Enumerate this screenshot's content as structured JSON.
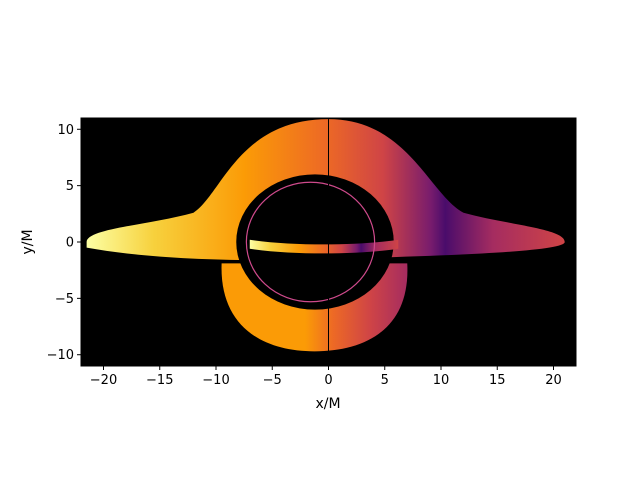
{
  "chart_data": {
    "type": "heatmap",
    "title": "",
    "xlabel": "x/M",
    "ylabel": "y/M",
    "xlim": [
      -22,
      22
    ],
    "ylim": [
      -11,
      11
    ],
    "xticks": [
      -20,
      -15,
      -10,
      -5,
      0,
      5,
      10,
      15,
      20
    ],
    "yticks": [
      -10,
      -5,
      0,
      5,
      10
    ],
    "xtick_labels": [
      "−20",
      "−15",
      "−10",
      "−5",
      "0",
      "5",
      "10",
      "15",
      "20"
    ],
    "ytick_labels": [
      "−10",
      "−5",
      "0",
      "5",
      "10"
    ],
    "grid": false,
    "legend": "none",
    "background": "#000000",
    "colormap": "inferno",
    "colormap_stops": [
      "#1b0c41",
      "#4a0c6b",
      "#781c6d",
      "#a52c60",
      "#cf4446",
      "#ed6925",
      "#fb9b06",
      "#f7d13d",
      "#fcffa4"
    ],
    "features": {
      "primary_disk_image": {
        "x_range": [
          -21.5,
          21
        ],
        "y_range": [
          -1.8,
          10.9
        ]
      },
      "secondary_disk_image": {
        "x_range": [
          -9.5,
          7
        ],
        "y_range": [
          -9.7,
          -1.9
        ]
      },
      "shadow": {
        "center": [
          -1.2,
          0
        ],
        "radius_x": 7.0,
        "radius_y": 6.0
      },
      "photon_ring": {
        "center": [
          -1.6,
          0
        ],
        "radius_x": 5.7,
        "radius_y": 5.3
      },
      "vertical_line_x": 0
    }
  }
}
